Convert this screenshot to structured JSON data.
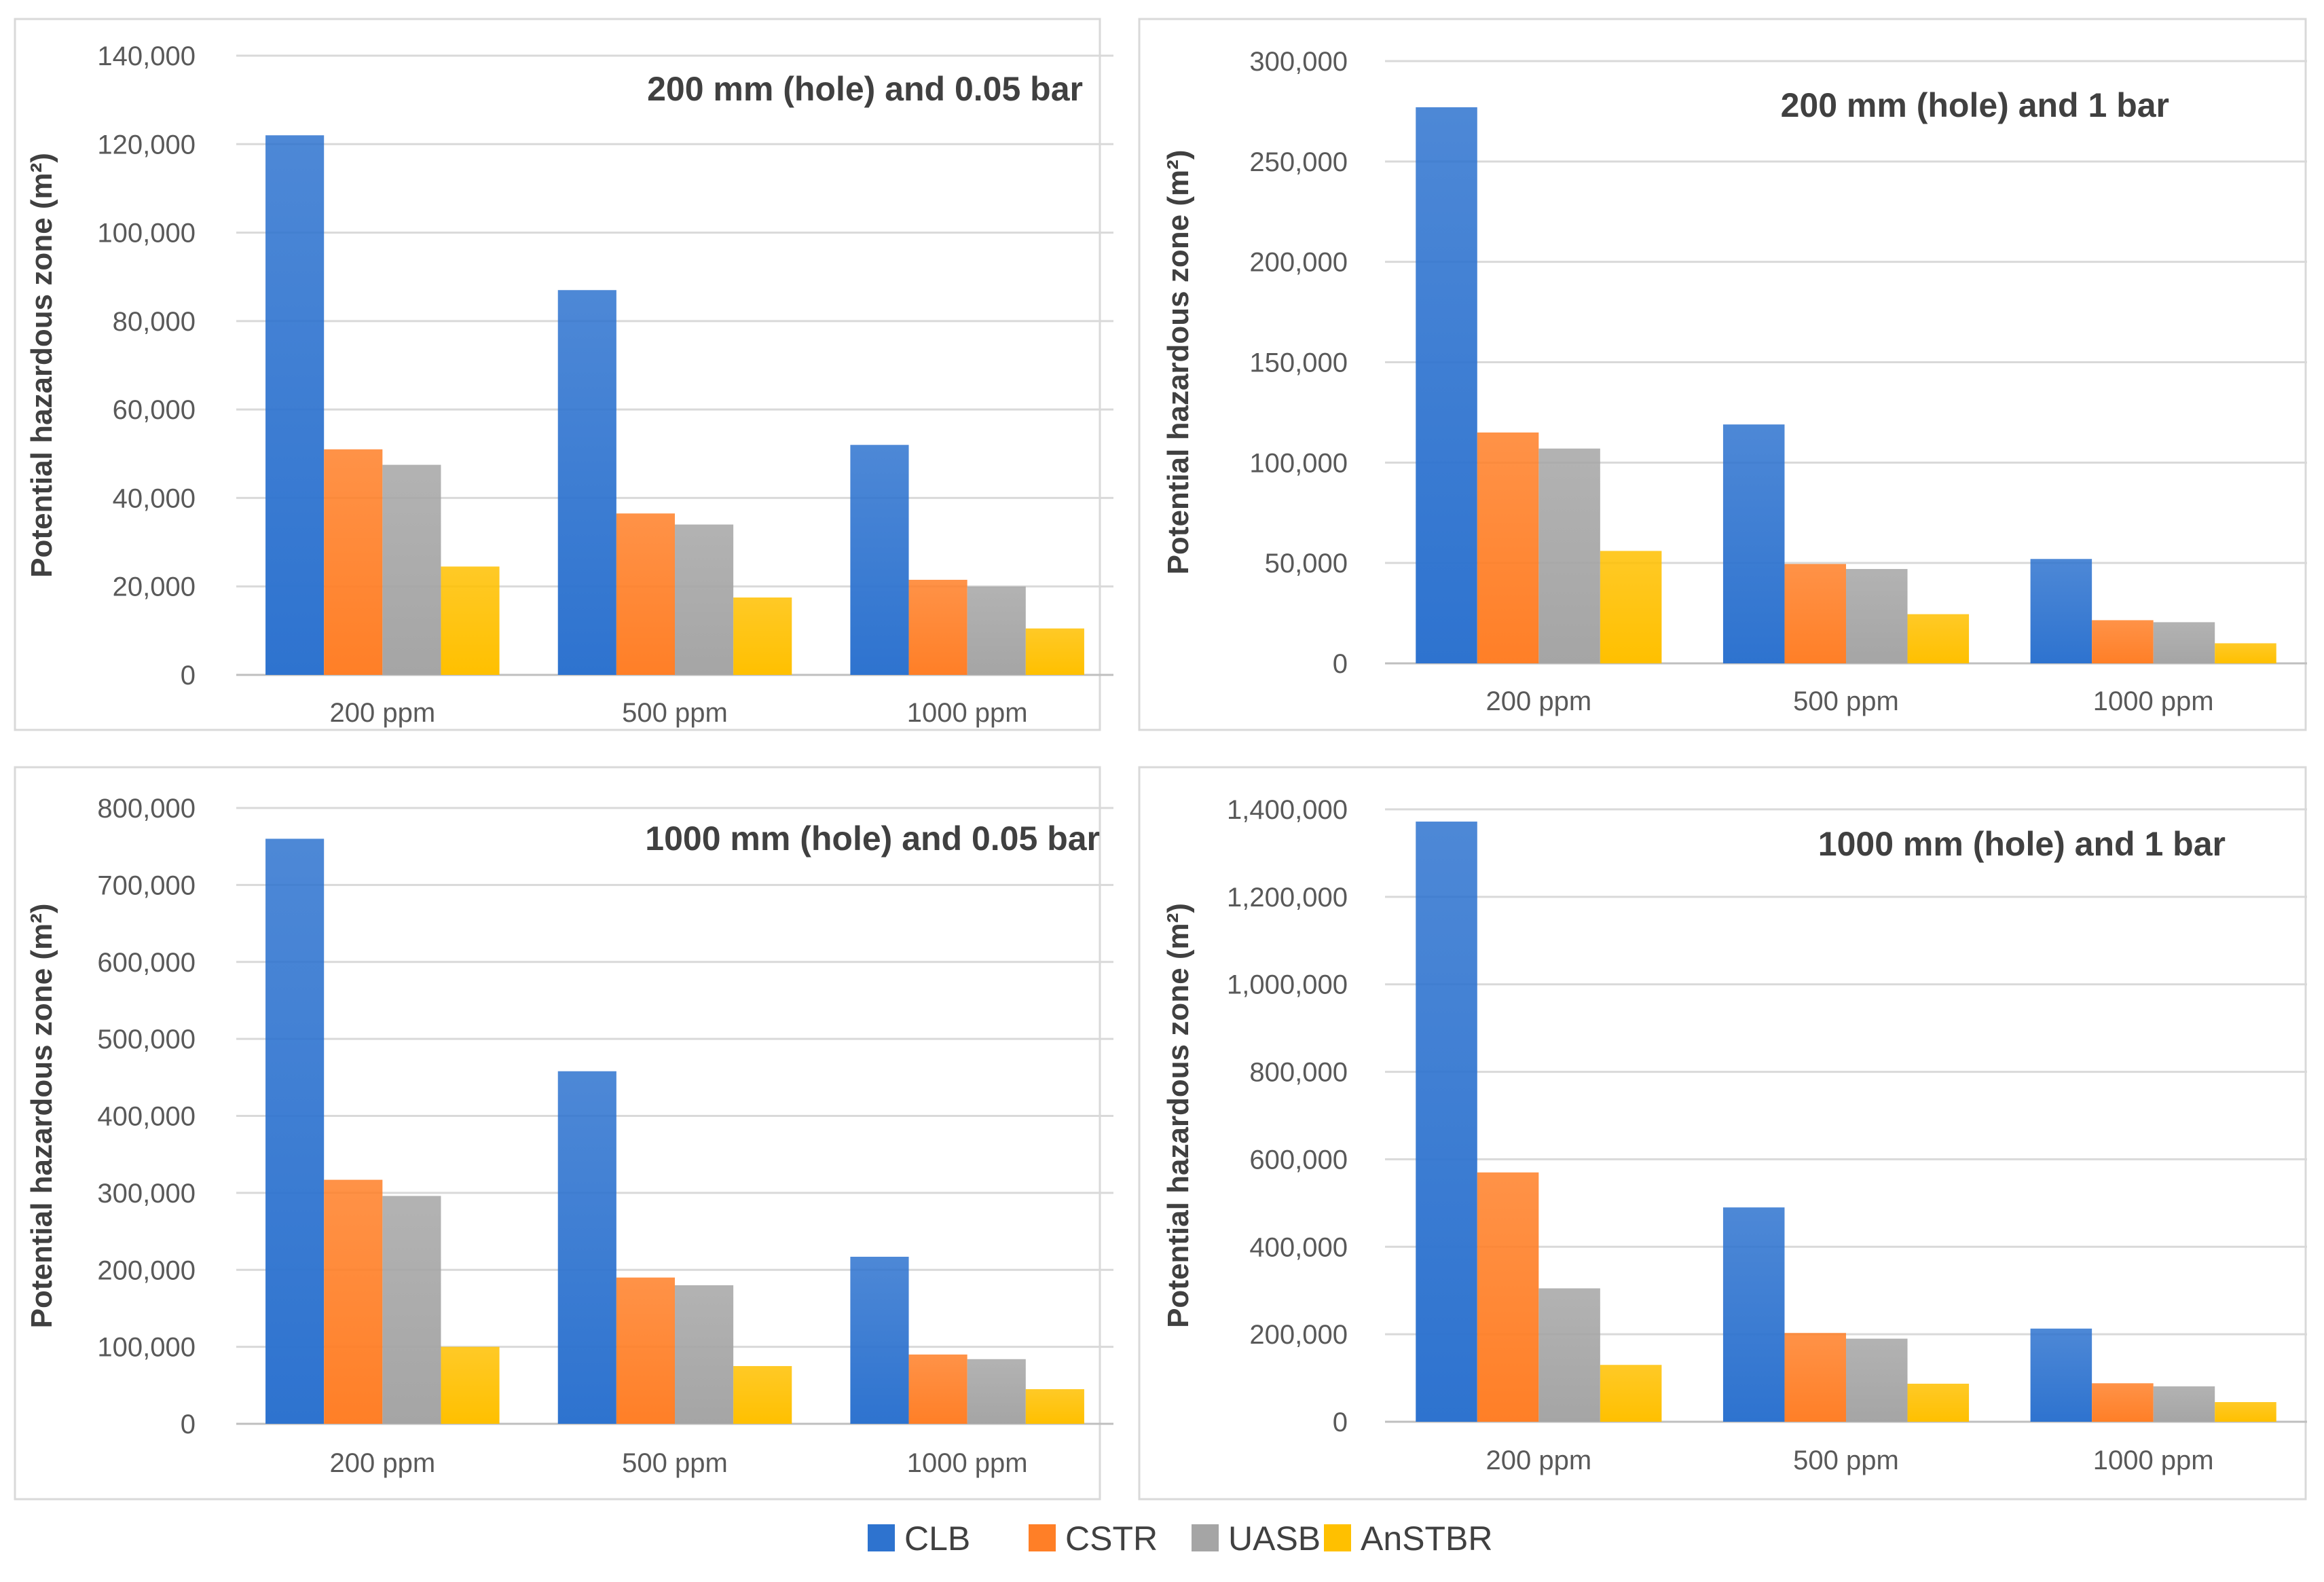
{
  "colors": {
    "CLB": "#2e73cf",
    "CSTR": "#ff7f27",
    "UASB": "#a5a5a5",
    "AnSTBR": "#ffc000"
  },
  "legend": [
    "CLB",
    "CSTR",
    "UASB",
    "AnSTBR"
  ],
  "chart_data": [
    {
      "type": "bar",
      "title": "200 mm (hole) and 0.05 bar",
      "ylabel": "Potential hazardous zone (m²)",
      "xlabel": "",
      "categories": [
        "200 ppm",
        "500 ppm",
        "1000 ppm"
      ],
      "ylim": [
        0,
        140000
      ],
      "yticks": [
        0,
        20000,
        40000,
        60000,
        80000,
        100000,
        120000,
        140000
      ],
      "series": [
        {
          "name": "CLB",
          "values": [
            122000,
            87000,
            52000
          ]
        },
        {
          "name": "CSTR",
          "values": [
            51000,
            36500,
            21500
          ]
        },
        {
          "name": "UASB",
          "values": [
            47500,
            34000,
            20000
          ]
        },
        {
          "name": "AnSTBR",
          "values": [
            24500,
            17500,
            10500
          ]
        }
      ]
    },
    {
      "type": "bar",
      "title": "200 mm (hole) and 1 bar",
      "ylabel": "Potential hazardous zone (m²)",
      "xlabel": "",
      "categories": [
        "200 ppm",
        "500 ppm",
        "1000 ppm"
      ],
      "ylim": [
        0,
        300000
      ],
      "yticks": [
        0,
        50000,
        100000,
        150000,
        200000,
        250000,
        300000
      ],
      "series": [
        {
          "name": "CLB",
          "values": [
            277000,
            119000,
            52000
          ]
        },
        {
          "name": "CSTR",
          "values": [
            115000,
            49500,
            21500
          ]
        },
        {
          "name": "UASB",
          "values": [
            107000,
            47000,
            20500
          ]
        },
        {
          "name": "AnSTBR",
          "values": [
            56000,
            24500,
            10000
          ]
        }
      ]
    },
    {
      "type": "bar",
      "title": "1000 mm (hole) and 0.05 bar",
      "ylabel": "Potential hazardous zone (m²)",
      "xlabel": "",
      "categories": [
        "200 ppm",
        "500 ppm",
        "1000 ppm"
      ],
      "ylim": [
        0,
        800000
      ],
      "yticks": [
        0,
        100000,
        200000,
        300000,
        400000,
        500000,
        600000,
        700000,
        800000
      ],
      "series": [
        {
          "name": "CLB",
          "values": [
            760000,
            458000,
            217000
          ]
        },
        {
          "name": "CSTR",
          "values": [
            317000,
            190000,
            90000
          ]
        },
        {
          "name": "UASB",
          "values": [
            296000,
            180000,
            84000
          ]
        },
        {
          "name": "AnSTBR",
          "values": [
            100000,
            75000,
            45000
          ]
        }
      ]
    },
    {
      "type": "bar",
      "title": "1000 mm (hole) and 1 bar",
      "ylabel": "Potential hazardous zone (m²)",
      "xlabel": "",
      "categories": [
        "200 ppm",
        "500 ppm",
        "1000 ppm"
      ],
      "ylim": [
        0,
        1400000
      ],
      "yticks": [
        0,
        200000,
        400000,
        600000,
        800000,
        1000000,
        1200000,
        1400000
      ],
      "series": [
        {
          "name": "CLB",
          "values": [
            1372000,
            490000,
            213000
          ]
        },
        {
          "name": "CSTR",
          "values": [
            570000,
            203000,
            88000
          ]
        },
        {
          "name": "UASB",
          "values": [
            305000,
            190000,
            81000
          ]
        },
        {
          "name": "AnSTBR",
          "values": [
            130000,
            87000,
            45000
          ]
        }
      ]
    }
  ]
}
